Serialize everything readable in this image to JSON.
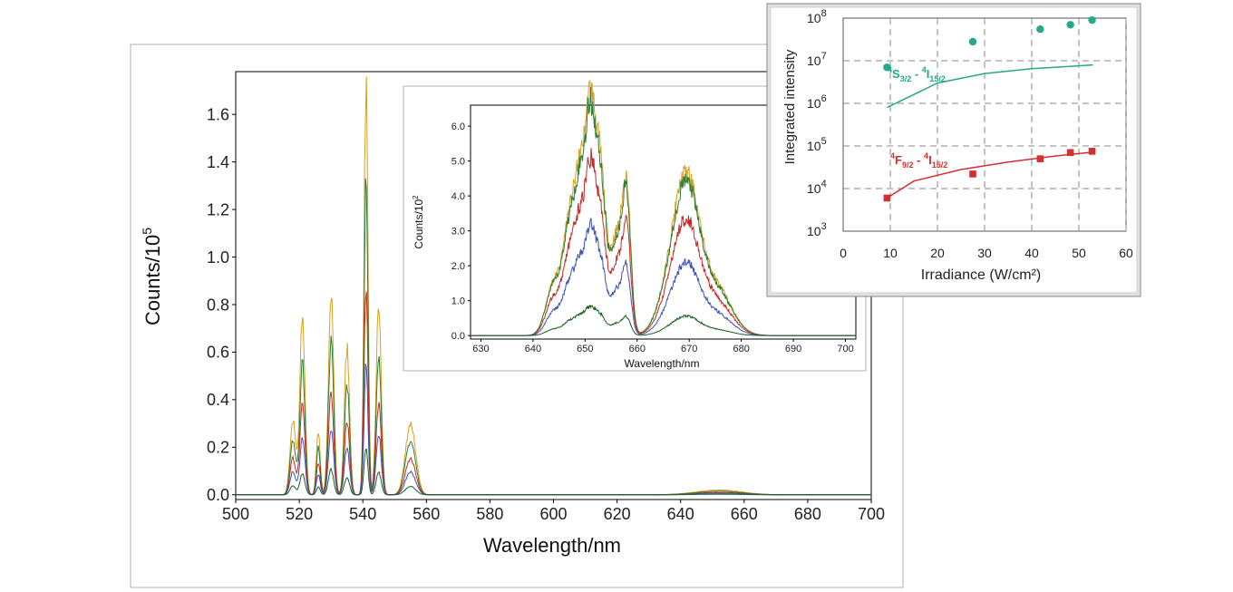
{
  "chart_data": [
    {
      "type": "line",
      "panel": "main spectrum",
      "xlabel": "Wavelength/nm",
      "ylabel": "Counts/10",
      "ylabel_exp": "5",
      "xlim": [
        500,
        700
      ],
      "ylim": [
        -0.02,
        1.78
      ],
      "x_ticks": [
        "500",
        "520",
        "540",
        "560",
        "580",
        "600",
        "620",
        "640",
        "660",
        "680",
        "700"
      ],
      "y_ticks": [
        "0.0",
        "0.2",
        "0.4",
        "0.6",
        "0.8",
        "1.0",
        "1.2",
        "1.4",
        "1.6"
      ],
      "x_tick_values": [
        500,
        520,
        540,
        560,
        580,
        600,
        620,
        640,
        660,
        680,
        700
      ],
      "y_tick_values": [
        0,
        0.2,
        0.4,
        0.6,
        0.8,
        1.0,
        1.2,
        1.4,
        1.6
      ],
      "peaks_nm": [
        518,
        521,
        526,
        530,
        535,
        541,
        545,
        555,
        652
      ],
      "peak_heights_top": [
        0.31,
        0.74,
        0.27,
        0.87,
        0.62,
        1.73,
        0.79,
        0.3,
        0.02
      ],
      "peak_widths_nm": [
        0.9,
        0.8,
        0.6,
        0.8,
        0.8,
        0.6,
        0.8,
        1.6,
        7
      ],
      "series_scales": [
        1.0,
        0.75,
        0.5,
        0.32,
        0.12
      ],
      "series_colors": [
        "#d8a020",
        "#2e7d32",
        "#c62828",
        "#3f51b5",
        "#1b5e20"
      ]
    },
    {
      "type": "line",
      "panel": "red region inset",
      "xlabel": "Wavelength/nm",
      "ylabel": "Counts/10",
      "ylabel_exp": "2",
      "xlim": [
        628,
        702
      ],
      "ylim": [
        -0.1,
        6.6
      ],
      "x_ticks": [
        "630",
        "640",
        "650",
        "660",
        "670",
        "680",
        "690",
        "700"
      ],
      "y_ticks": [
        "0.0",
        "1.0",
        "2.0",
        "3.0",
        "4.0",
        "5.0",
        "6.0"
      ],
      "x_tick_values": [
        630,
        640,
        650,
        660,
        670,
        680,
        690,
        700
      ],
      "y_tick_values": [
        0,
        1,
        2,
        3,
        4,
        5,
        6
      ],
      "peaks_nm": [
        644,
        647,
        649,
        651,
        653,
        656,
        658,
        667,
        669,
        671,
        675
      ],
      "peak_heights_top": [
        1.5,
        3.0,
        3.6,
        6.0,
        4.3,
        2.8,
        3.8,
        1.8,
        2.1,
        1.7,
        1.4
      ],
      "peak_widths_nm": [
        1.5,
        1.2,
        1.0,
        1.0,
        1.0,
        1.2,
        0.8,
        2.5,
        2.0,
        2.0,
        3.0
      ],
      "series_scales": [
        1.0,
        0.95,
        0.72,
        0.45,
        0.12
      ],
      "series_colors": [
        "#d8a020",
        "#2e7d32",
        "#c62828",
        "#3f51b5",
        "#1b5e20"
      ]
    },
    {
      "type": "scatter",
      "panel": "power dependence inset",
      "xlabel": "Irradiance (W/cm²)",
      "ylabel": "Integrated intensity",
      "y_scale": "log",
      "grid": true,
      "xlim": [
        0,
        60
      ],
      "ylim_exp": [
        3,
        8
      ],
      "x_ticks": [
        "0",
        "10",
        "20",
        "30",
        "40",
        "50",
        "60"
      ],
      "x_tick_values": [
        0,
        10,
        20,
        30,
        40,
        50,
        60
      ],
      "y_tick_exps": [
        "3",
        "4",
        "5",
        "6",
        "7",
        "8"
      ],
      "series": [
        {
          "label_main": "4",
          "label_s": "S",
          "label_sub1": "3/2",
          "label_sep": " - ",
          "label_sup2": "4",
          "label_i": "I",
          "label_sub2": "15/2",
          "x": [
            9.3,
            27.5,
            41.8,
            48.2,
            52.8
          ],
          "y": [
            7000000.0,
            28000000.0,
            55000000.0,
            70000000.0,
            90000000.0
          ],
          "color": "#26a88a",
          "marker": "circle",
          "fit": [
            [
              9.3,
              800000.0
            ],
            [
              20,
              3000000.0
            ],
            [
              30,
              5000000.0
            ],
            [
              40,
              6500000.0
            ],
            [
              53,
              8000000.0
            ]
          ]
        },
        {
          "label_main": "4",
          "label_s": "F",
          "label_sub1": "9/2",
          "label_sep": " - ",
          "label_sup2": "4",
          "label_i": "I",
          "label_sub2": "15/2",
          "x": [
            9.3,
            27.5,
            41.8,
            48.2,
            52.8
          ],
          "y": [
            6000.0,
            22000.0,
            50000.0,
            70000.0,
            75000.0
          ],
          "color": "#d32f2f",
          "marker": "square",
          "fit": [
            [
              9.3,
              6000.0
            ],
            [
              15,
              15000.0
            ],
            [
              25,
              28000.0
            ],
            [
              35,
              42000.0
            ],
            [
              45,
              58000.0
            ],
            [
              53,
              72000.0
            ]
          ]
        }
      ]
    }
  ]
}
